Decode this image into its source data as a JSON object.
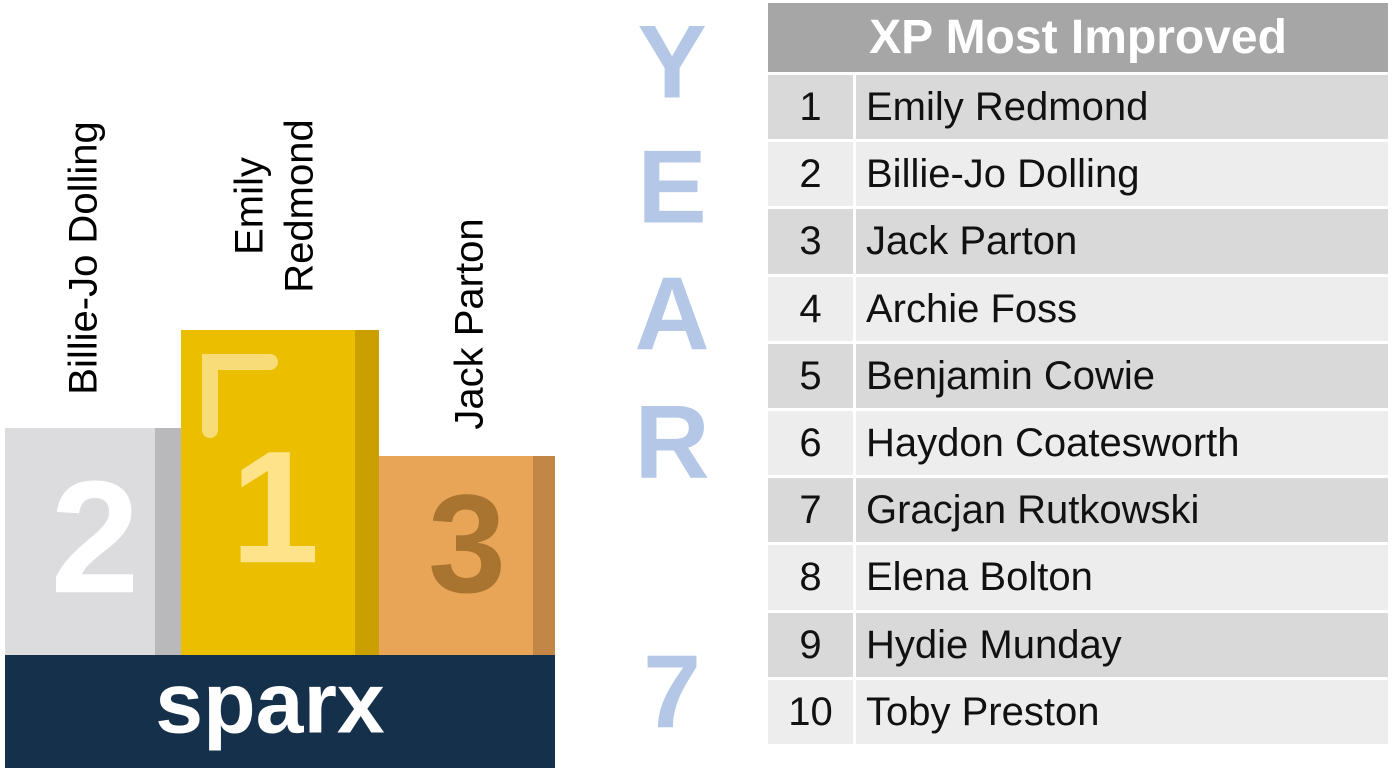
{
  "podium": [
    {
      "place": "2",
      "name": "Billie-Jo Dolling"
    },
    {
      "place": "1",
      "name_lines": [
        "Emily",
        "Redmond"
      ]
    },
    {
      "place": "3",
      "name": "Jack Parton"
    }
  ],
  "logo": "sparx",
  "year_label": [
    "Y",
    "E",
    "A",
    "R",
    "7"
  ],
  "table": {
    "title": "XP Most Improved",
    "rows": [
      [
        1,
        "Emily Redmond"
      ],
      [
        2,
        "Billie-Jo Dolling"
      ],
      [
        3,
        "Jack Parton"
      ],
      [
        4,
        "Archie Foss"
      ],
      [
        5,
        "Benjamin Cowie"
      ],
      [
        6,
        "Haydon Coatesworth"
      ],
      [
        7,
        "Gracjan Rutkowski"
      ],
      [
        8,
        "Elena Bolton"
      ],
      [
        9,
        "Hydie Munday"
      ],
      [
        10,
        "Toby Preston"
      ]
    ]
  }
}
